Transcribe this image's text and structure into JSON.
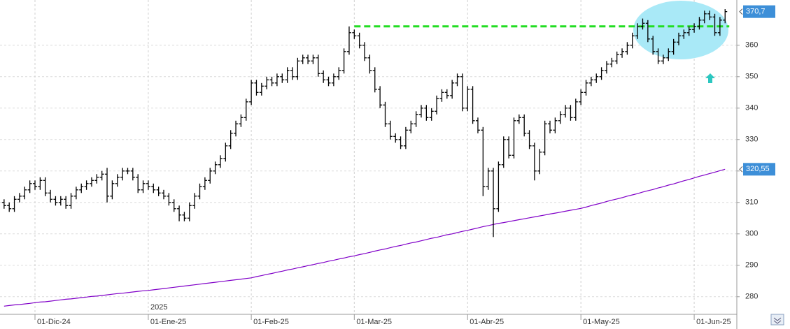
{
  "chart_data": {
    "type": "ohlc",
    "categories": [
      null,
      null,
      null,
      null,
      null,
      null,
      "01-Dic-24",
      null,
      null,
      null,
      null,
      null,
      null,
      null,
      null,
      null,
      null,
      null,
      null,
      null,
      null,
      null,
      null,
      null,
      null,
      null,
      null,
      null,
      "01-Ene-25",
      null,
      null,
      null,
      null,
      null,
      null,
      null,
      null,
      null,
      null,
      null,
      null,
      null,
      null,
      null,
      null,
      null,
      null,
      null,
      "01-Feb-25",
      null,
      null,
      null,
      null,
      null,
      null,
      null,
      null,
      null,
      null,
      null,
      null,
      null,
      null,
      null,
      null,
      null,
      null,
      null,
      "01-Mar-25",
      null,
      null,
      null,
      null,
      null,
      null,
      null,
      null,
      null,
      null,
      null,
      null,
      null,
      null,
      null,
      null,
      null,
      null,
      null,
      null,
      null,
      "01-Abr-25",
      null,
      null,
      null,
      null,
      null,
      null,
      null,
      null,
      null,
      null,
      null,
      null,
      null,
      null,
      null,
      null,
      null,
      null,
      null,
      null,
      null,
      "01-May-25",
      null,
      null,
      null,
      null,
      null,
      null,
      null,
      null,
      null,
      null,
      null,
      null,
      null,
      null,
      null,
      null,
      null,
      null,
      null,
      null,
      null,
      "01-Jun-25",
      null,
      null,
      null,
      null,
      null,
      null
    ],
    "open": [
      310,
      309,
      308,
      311,
      312,
      314,
      316,
      315,
      317,
      313,
      311,
      310,
      311,
      309,
      312,
      314,
      315,
      316,
      317,
      318,
      319,
      312,
      316,
      318,
      320,
      320,
      318,
      314,
      316,
      315,
      314,
      313,
      312,
      310,
      308,
      306,
      305,
      309,
      312,
      315,
      317,
      320,
      322,
      324,
      328,
      332,
      335,
      337,
      342,
      348,
      345,
      347,
      349,
      348,
      350,
      349,
      352,
      350,
      355,
      356,
      355,
      356,
      351,
      349,
      348,
      350,
      352,
      358,
      364,
      363,
      360,
      356,
      352,
      346,
      341,
      335,
      331,
      330,
      328,
      333,
      335,
      338,
      340,
      337,
      339,
      343,
      345,
      344,
      348,
      350,
      340,
      346,
      336,
      333,
      315,
      320,
      308,
      322,
      330,
      325,
      336,
      337,
      332,
      328,
      320,
      326,
      335,
      333,
      336,
      338,
      340,
      337,
      342,
      345,
      348,
      349,
      350,
      352,
      354,
      355,
      357,
      358,
      360,
      363,
      366,
      367,
      362,
      358,
      355,
      356,
      358,
      361,
      363,
      364,
      365,
      366,
      368,
      370,
      369,
      364,
      368
    ],
    "high": [
      311,
      310,
      312,
      313,
      315,
      317,
      317,
      318,
      318,
      314,
      312,
      312,
      312,
      313,
      315,
      316,
      317,
      318,
      319,
      320,
      321,
      317,
      319,
      321,
      321,
      321,
      319,
      317,
      317,
      316,
      315,
      314,
      313,
      311,
      309,
      307,
      310,
      313,
      316,
      318,
      321,
      323,
      325,
      329,
      333,
      336,
      338,
      343,
      349,
      349,
      348,
      350,
      350,
      351,
      351,
      353,
      353,
      356,
      357,
      357,
      357,
      357,
      352,
      350,
      351,
      353,
      359,
      366,
      365,
      364,
      361,
      357,
      353,
      347,
      342,
      336,
      332,
      331,
      334,
      336,
      339,
      341,
      341,
      340,
      344,
      346,
      346,
      349,
      351,
      351,
      347,
      347,
      337,
      334,
      321,
      321,
      323,
      331,
      331,
      337,
      338,
      338,
      333,
      329,
      327,
      336,
      336,
      337,
      339,
      341,
      341,
      343,
      346,
      349,
      350,
      351,
      353,
      355,
      356,
      358,
      359,
      361,
      364,
      367,
      368.5,
      368,
      363,
      359,
      357,
      359,
      362,
      364,
      365,
      366,
      367,
      369,
      371,
      371,
      370,
      369,
      371.5
    ],
    "low": [
      308,
      307,
      307,
      310,
      311,
      313,
      314,
      314,
      312,
      310,
      309,
      309,
      308,
      308,
      311,
      313,
      314,
      315,
      316,
      317,
      310,
      311,
      315,
      317,
      319,
      317,
      313,
      313,
      314,
      313,
      312,
      311,
      309,
      307,
      304,
      304,
      304,
      308,
      311,
      314,
      316,
      319,
      321,
      323,
      327,
      331,
      334,
      336,
      341,
      344,
      344,
      346,
      347,
      347,
      348,
      348,
      349,
      349,
      354,
      354,
      354,
      350,
      348,
      347,
      347,
      349,
      351,
      357,
      362,
      359,
      355,
      351,
      345,
      340,
      334,
      330,
      329,
      327,
      327,
      332,
      334,
      337,
      336,
      336,
      338,
      342,
      343,
      343,
      347,
      339,
      339,
      335,
      332,
      312,
      314,
      299,
      307,
      321,
      324,
      324,
      335,
      331,
      327,
      317,
      319,
      325,
      332,
      332,
      335,
      337,
      336,
      336,
      341,
      344,
      347,
      348,
      349,
      351,
      353,
      354,
      356,
      357,
      359,
      362,
      365,
      361,
      357,
      354,
      354,
      355,
      357,
      360,
      362,
      363,
      364,
      365,
      367,
      368,
      363,
      363,
      367
    ],
    "close": [
      309,
      308,
      311,
      312,
      314,
      316,
      315,
      317,
      313,
      311,
      310,
      311,
      309,
      312,
      314,
      315,
      316,
      317,
      318,
      319,
      312,
      316,
      318,
      320,
      320,
      318,
      314,
      316,
      315,
      314,
      313,
      312,
      310,
      308,
      306,
      305,
      309,
      312,
      315,
      317,
      320,
      322,
      324,
      328,
      332,
      335,
      337,
      342,
      348,
      345,
      347,
      349,
      348,
      350,
      349,
      352,
      350,
      355,
      356,
      355,
      356,
      351,
      349,
      348,
      350,
      352,
      358,
      364,
      363,
      360,
      356,
      352,
      346,
      341,
      335,
      331,
      330,
      328,
      333,
      335,
      338,
      340,
      337,
      339,
      343,
      345,
      344,
      348,
      350,
      340,
      346,
      336,
      333,
      315,
      320,
      308,
      322,
      330,
      325,
      336,
      337,
      332,
      328,
      320,
      326,
      335,
      333,
      336,
      338,
      340,
      337,
      342,
      345,
      348,
      349,
      350,
      352,
      354,
      355,
      357,
      358,
      360,
      363,
      366,
      367,
      362,
      358,
      355,
      356,
      358,
      361,
      363,
      364,
      365,
      366,
      368,
      370,
      369,
      364,
      368,
      370.7
    ],
    "last_close_label": "370,7",
    "color": "#000000",
    "moving_average": {
      "color": "#8000c8",
      "value_label": "320,55",
      "values": [
        277.0,
        277.2,
        277.4,
        277.5,
        277.7,
        277.9,
        278.1,
        278.3,
        278.4,
        278.6,
        278.8,
        279.0,
        279.2,
        279.3,
        279.5,
        279.7,
        279.9,
        280.1,
        280.2,
        280.4,
        280.6,
        280.8,
        281.0,
        281.1,
        281.3,
        281.5,
        281.7,
        281.9,
        282.0,
        282.2,
        282.4,
        282.6,
        282.8,
        283.0,
        283.2,
        283.4,
        283.6,
        283.8,
        284.0,
        284.2,
        284.4,
        284.6,
        284.8,
        285.0,
        285.2,
        285.4,
        285.6,
        285.8,
        286.0,
        286.4,
        286.7,
        287.1,
        287.4,
        287.8,
        288.1,
        288.5,
        288.8,
        289.2,
        289.5,
        289.9,
        290.2,
        290.6,
        290.9,
        291.3,
        291.6,
        292.0,
        292.3,
        292.7,
        293.0,
        293.4,
        293.7,
        294.1,
        294.5,
        294.9,
        295.2,
        295.6,
        296.0,
        296.3,
        296.7,
        297.1,
        297.4,
        297.8,
        298.2,
        298.6,
        298.9,
        299.3,
        299.7,
        300.0,
        300.4,
        300.8,
        301.1,
        301.5,
        301.9,
        302.3,
        302.6,
        303.0,
        303.3,
        303.6,
        303.9,
        304.2,
        304.5,
        304.8,
        305.1,
        305.4,
        305.7,
        306.0,
        306.3,
        306.6,
        306.9,
        307.2,
        307.5,
        307.8,
        308.1,
        308.5,
        309.0,
        309.4,
        309.8,
        310.3,
        310.7,
        311.1,
        311.5,
        312.0,
        312.4,
        312.8,
        313.3,
        313.7,
        314.1,
        314.6,
        315.0,
        315.5,
        315.9,
        316.4,
        316.9,
        317.3,
        317.8,
        318.3,
        318.7,
        319.2,
        319.6,
        320.1,
        320.55
      ]
    },
    "resistance": {
      "value": 366,
      "color": "#22dd22"
    },
    "year_label": "2025",
    "ylim": [
      274.4,
      374.4
    ],
    "yticks": [
      280,
      290,
      300,
      310,
      320,
      330,
      340,
      350,
      360
    ],
    "grid": true
  }
}
